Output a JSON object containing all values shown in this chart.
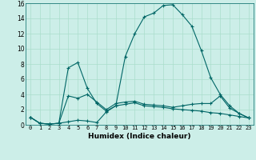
{
  "bg_color": "#cceee8",
  "line_color": "#006666",
  "grid_color": "#aaddcc",
  "xlabel": "Humidex (Indice chaleur)",
  "xlim": [
    -0.5,
    23.5
  ],
  "ylim": [
    0,
    16
  ],
  "xticks": [
    0,
    1,
    2,
    3,
    4,
    5,
    6,
    7,
    8,
    9,
    10,
    11,
    12,
    13,
    14,
    15,
    16,
    17,
    18,
    19,
    20,
    21,
    22,
    23
  ],
  "yticks": [
    0,
    2,
    4,
    6,
    8,
    10,
    12,
    14,
    16
  ],
  "series": [
    {
      "x": [
        0,
        1,
        2,
        3,
        4,
        5,
        6,
        7,
        8,
        9,
        10,
        11,
        12,
        13,
        14,
        15,
        16,
        17,
        18,
        19,
        20,
        21,
        22,
        23
      ],
      "y": [
        1.0,
        0.2,
        0.1,
        0.2,
        7.5,
        8.2,
        4.8,
        2.8,
        1.8,
        2.5,
        2.7,
        2.9,
        2.5,
        2.4,
        2.3,
        2.1,
        2.0,
        1.9,
        1.8,
        1.6,
        1.5,
        1.3,
        1.1,
        0.9
      ]
    },
    {
      "x": [
        0,
        1,
        2,
        3,
        4,
        5,
        6,
        7,
        8,
        9,
        10,
        11,
        12,
        13,
        14,
        15,
        16,
        17,
        18,
        19,
        20,
        21,
        22,
        23
      ],
      "y": [
        1.0,
        0.2,
        0.1,
        0.2,
        3.8,
        3.5,
        4.0,
        3.0,
        2.0,
        2.8,
        3.0,
        3.1,
        2.7,
        2.6,
        2.5,
        2.3,
        2.5,
        2.7,
        2.8,
        2.8,
        3.8,
        2.2,
        1.5,
        0.9
      ]
    },
    {
      "x": [
        0,
        1,
        2,
        3,
        4,
        5,
        6,
        7,
        8,
        9,
        10,
        11,
        12,
        13,
        14,
        15,
        16,
        17,
        18,
        19,
        20,
        21,
        22,
        23
      ],
      "y": [
        1.0,
        0.2,
        0.1,
        0.2,
        0.4,
        0.6,
        0.5,
        0.3,
        1.7,
        2.5,
        9.0,
        12.0,
        14.2,
        14.7,
        15.7,
        15.8,
        14.5,
        13.0,
        9.8,
        6.2,
        4.0,
        2.5,
        1.5,
        0.9
      ]
    }
  ]
}
